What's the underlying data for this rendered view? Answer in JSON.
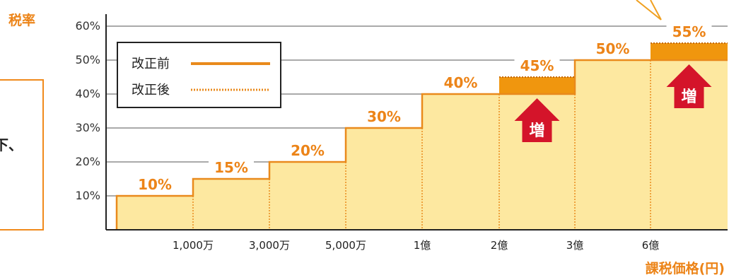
{
  "chart_data": {
    "type": "bar",
    "ylabel": "税率",
    "xlabel": "課税価格(円)",
    "y_ticks": [
      "10%",
      "20%",
      "30%",
      "40%",
      "50%",
      "60%"
    ],
    "ylim": [
      0,
      60
    ],
    "categories": [
      "〜1,000万",
      "1,000万〜3,000万",
      "3,000万〜5,000万",
      "5,000万〜1億",
      "1億〜2億",
      "2億〜3億",
      "3億〜6億",
      "6億〜"
    ],
    "boundary_labels": [
      "1,000万",
      "3,000万",
      "5,000万",
      "1億",
      "2億",
      "3億",
      "6億"
    ],
    "series": [
      {
        "name": "改正前",
        "values": [
          10,
          15,
          20,
          30,
          40,
          40,
          50,
          50
        ]
      },
      {
        "name": "改正後",
        "values": [
          10,
          15,
          20,
          30,
          40,
          45,
          50,
          55
        ]
      }
    ],
    "data_labels": [
      "10%",
      "15%",
      "20%",
      "30%",
      "40%",
      "45%",
      "50%",
      "55%"
    ],
    "annotations": [
      "増",
      "増"
    ],
    "legend_position": "top-left",
    "grid": true,
    "colors": {
      "bar_fill": "#fde8a0",
      "bar_edge": "#e98a1c",
      "increase_fill": "#f0960e",
      "arrow": "#d4142a",
      "label": "#ec8418",
      "axis": "#222222"
    }
  },
  "side_note": {
    "line1": "下、",
    "line2": "："
  }
}
